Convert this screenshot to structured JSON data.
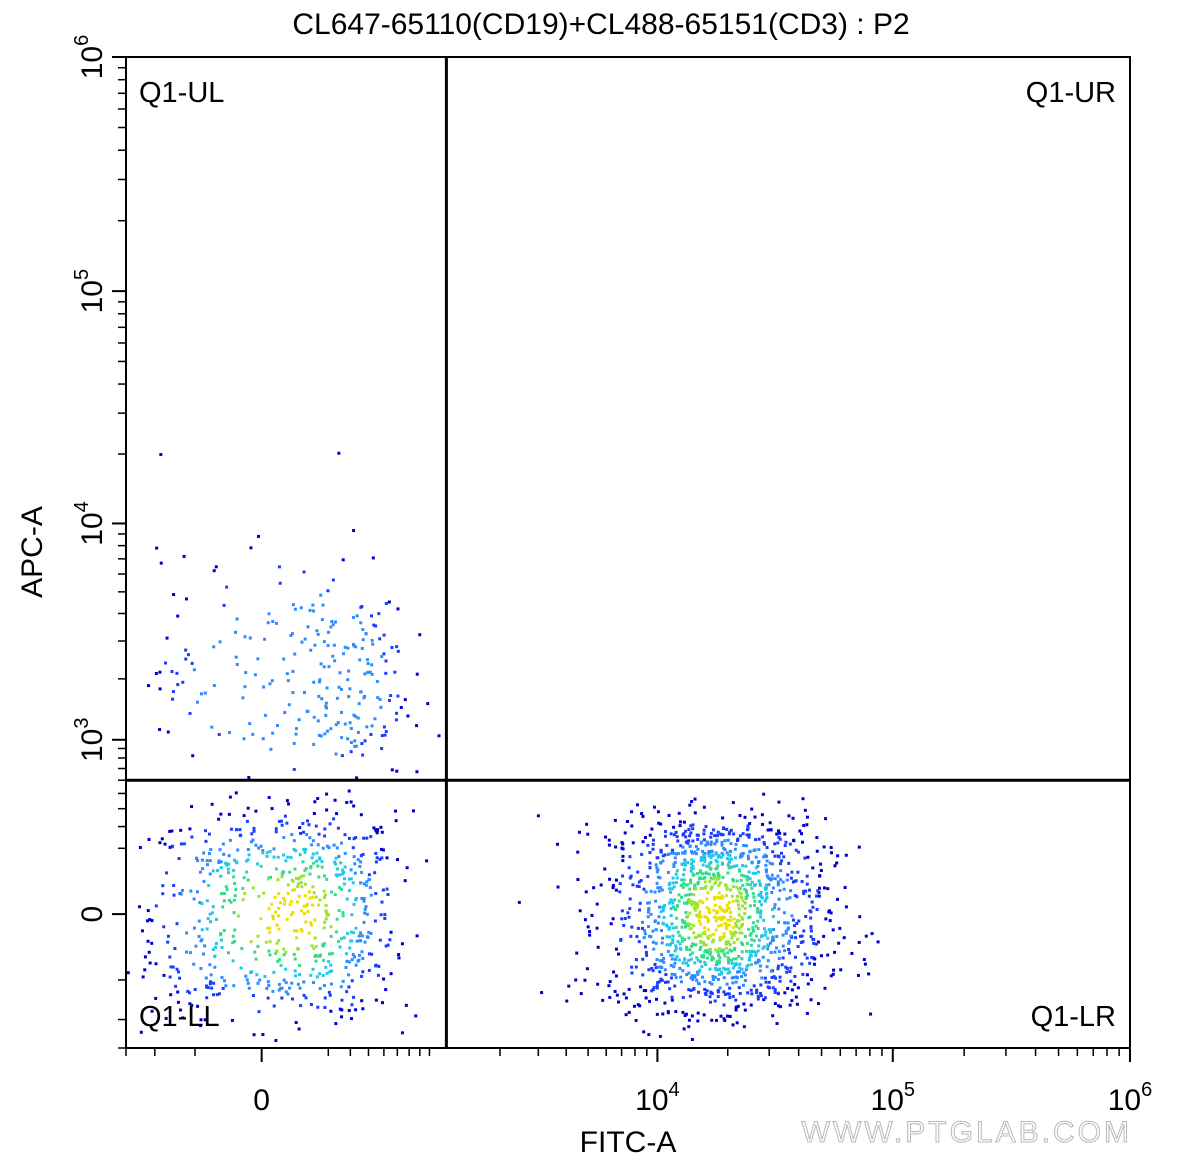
{
  "chart_data": {
    "type": "scatter",
    "title": "CL647-65110(CD19)+CL488-65151(CD3) : P2",
    "xlabel": "FITC-A",
    "ylabel": "APC-A",
    "x_scale": "biexponential",
    "y_scale": "biexponential",
    "xlim": [
      -600,
      1000000
    ],
    "ylim": [
      -600,
      1000000
    ],
    "x_ticks": [
      {
        "value": 0,
        "base": "0",
        "exp": ""
      },
      {
        "value": 10000,
        "base": "10",
        "exp": "4"
      },
      {
        "value": 100000,
        "base": "10",
        "exp": "5"
      },
      {
        "value": 1000000,
        "base": "10",
        "exp": "6"
      }
    ],
    "y_ticks": [
      {
        "value": 0,
        "base": "0",
        "exp": ""
      },
      {
        "value": 1000,
        "base": "10",
        "exp": "3"
      },
      {
        "value": 10000,
        "base": "10",
        "exp": "4"
      },
      {
        "value": 100000,
        "base": "10",
        "exp": "5"
      },
      {
        "value": 1000000,
        "base": "10",
        "exp": "6"
      }
    ],
    "quadrant_gate": {
      "x": 1100,
      "y": 600
    },
    "quadrant_labels": {
      "ul": "Q1-UL",
      "ur": "Q1-UR",
      "ll": "Q1-LL",
      "lr": "Q1-LR"
    },
    "populations": [
      {
        "name_hint": "CD3- CD19- (lower left)",
        "x_center": 80,
        "y_center": 0,
        "x_spread": 250,
        "y_spread": 190,
        "count": 700
      },
      {
        "name_hint": "CD3+ (lower right)",
        "x_center": 18000,
        "y_center": 0,
        "x_spread_log10": 0.23,
        "y_spread": 170,
        "count": 1400
      },
      {
        "name_hint": "CD19+ (upper left)",
        "x_center": 150,
        "y_center": 2000,
        "x_spread": 260,
        "y_spread_log10": 0.28,
        "count": 260
      }
    ],
    "density_colors": [
      "#0000cc",
      "#1a3cff",
      "#2d8cff",
      "#23c8e8",
      "#33dd88",
      "#9ae62e",
      "#e8e000"
    ],
    "grid": false,
    "legend": "none"
  },
  "watermark": "WWW.PTGLAB.COM"
}
